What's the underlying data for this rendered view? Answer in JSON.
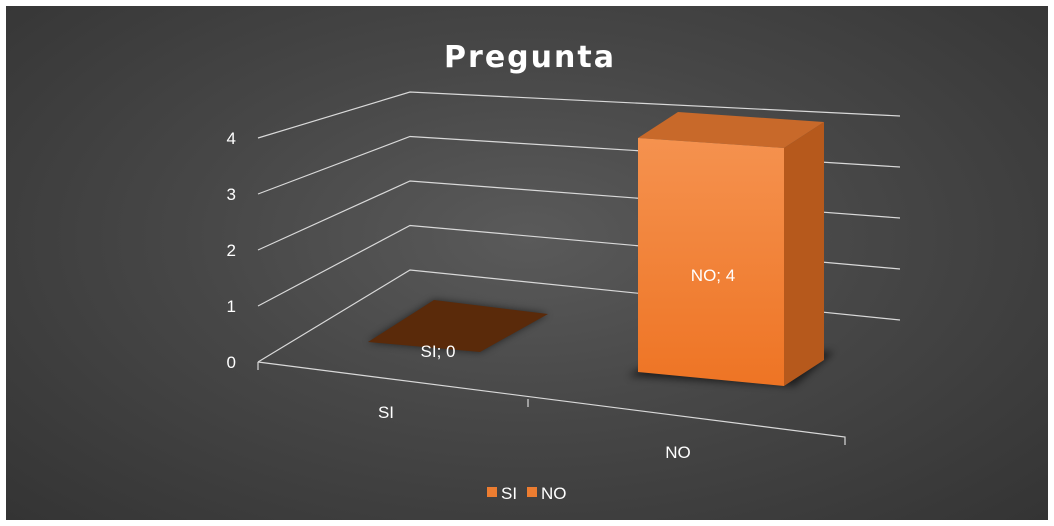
{
  "chart_data": {
    "type": "bar",
    "style": "3d-column",
    "title": "Pregunta",
    "categories": [
      "SI",
      "NO"
    ],
    "series": [
      {
        "name": "SI",
        "values": [
          0,
          null
        ],
        "color": "#5a2a0a"
      },
      {
        "name": "NO",
        "values": [
          null,
          4
        ],
        "color": "#ed7d31"
      }
    ],
    "data_labels": [
      "SI; 0",
      "NO; 4"
    ],
    "yticks": [
      "0",
      "1",
      "2",
      "3",
      "4"
    ],
    "ylim": [
      0,
      4
    ],
    "grid": true,
    "legend_position": "bottom",
    "background": "#474747"
  }
}
